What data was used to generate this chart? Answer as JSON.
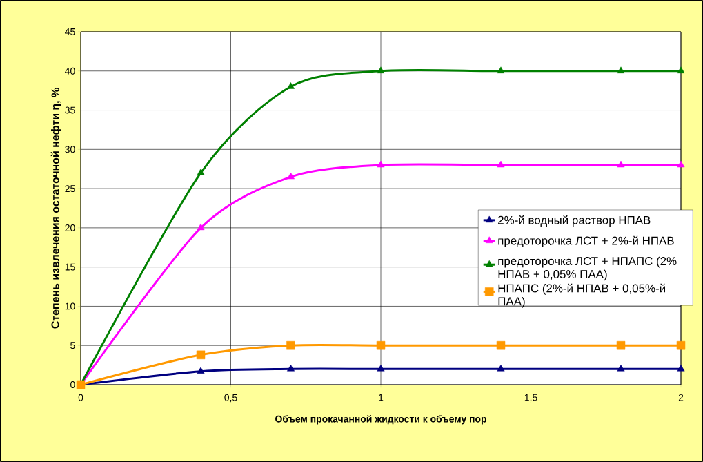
{
  "chart_data": {
    "type": "line",
    "xlabel": "Объем прокачанной жидкости к объему пор",
    "ylabel": "Степень извлечения остаточной нефти η, %",
    "x": [
      0,
      0.4,
      0.7,
      1,
      1.4,
      1.8,
      2
    ],
    "series": [
      {
        "name": "2%-й водный раствор НПАВ",
        "color": "#000080",
        "marker": "triangle",
        "values": [
          0,
          1.7,
          2,
          2,
          2,
          2,
          2
        ]
      },
      {
        "name": "предоторочка ЛСТ + 2%-й НПАВ",
        "color": "#ff00ff",
        "marker": "triangle",
        "values": [
          0,
          20,
          26.5,
          28,
          28,
          28,
          28
        ]
      },
      {
        "name": "предоторочка ЛСТ + НПАПС (2% НПАВ + 0,05% ПАА)",
        "color": "#008000",
        "marker": "triangle",
        "values": [
          0,
          27,
          38,
          40,
          40,
          40,
          40
        ]
      },
      {
        "name": "НПАПС (2%-й НПАВ + 0,05%-й ПАА)",
        "color": "#ff9900",
        "marker": "square",
        "values": [
          0,
          3.8,
          5,
          5,
          5,
          5,
          5
        ]
      }
    ],
    "xlim": [
      0,
      2
    ],
    "xticks": [
      0,
      {
        "value": 0.5,
        "label": "0,5"
      },
      1,
      {
        "value": 1.5,
        "label": "1,5"
      },
      2
    ],
    "ylim": [
      0,
      45
    ],
    "yticks": [
      0,
      5,
      10,
      15,
      20,
      25,
      30,
      35,
      40,
      45
    ],
    "grid": true,
    "legend": "right"
  }
}
